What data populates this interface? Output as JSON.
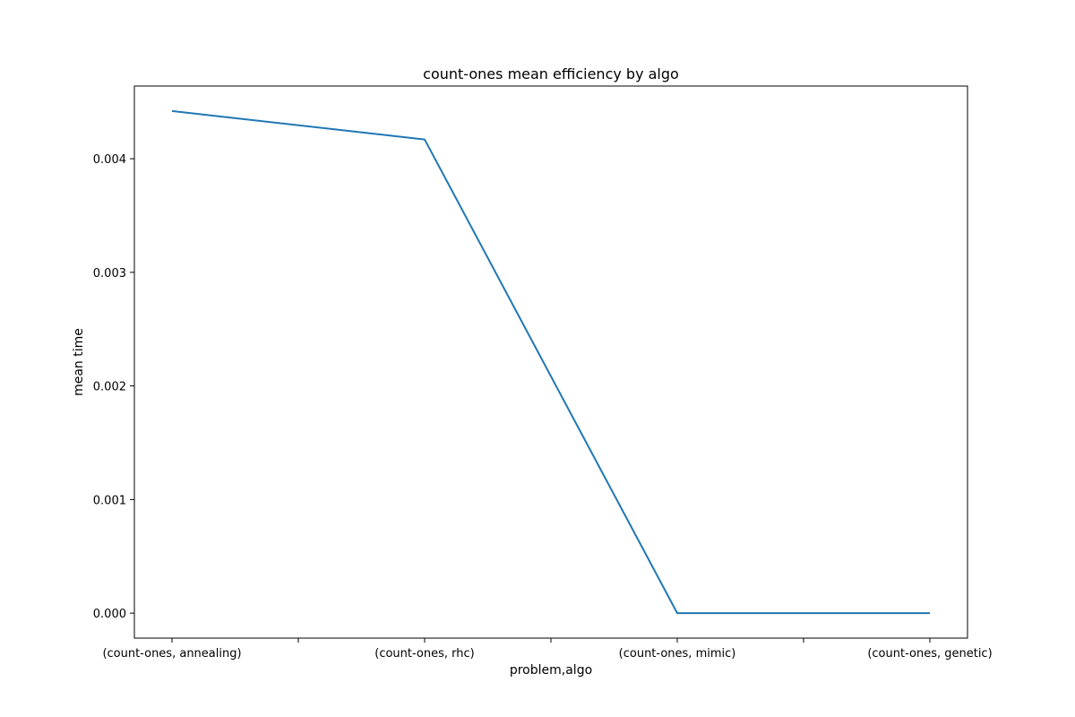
{
  "chart_data": {
    "type": "line",
    "title": "count-ones mean efficiency by algo",
    "xlabel": "problem,algo",
    "ylabel": "mean time",
    "categories": [
      "(count-ones, annealing)",
      "(count-ones, rhc)",
      "(count-ones, mimic)",
      "(count-ones, genetic)"
    ],
    "series": [
      {
        "values": [
          0.00442,
          0.00417,
          0.0,
          0.0
        ],
        "color": "#1f77b4"
      }
    ],
    "y_ticks": [
      {
        "value": 0.0,
        "label": "0.000"
      },
      {
        "value": 0.001,
        "label": "0.001"
      },
      {
        "value": 0.002,
        "label": "0.002"
      },
      {
        "value": 0.003,
        "label": "0.003"
      },
      {
        "value": 0.004,
        "label": "0.004"
      }
    ],
    "ylim": [
      -0.00022,
      0.00464
    ],
    "grid": false,
    "legend": "none"
  }
}
